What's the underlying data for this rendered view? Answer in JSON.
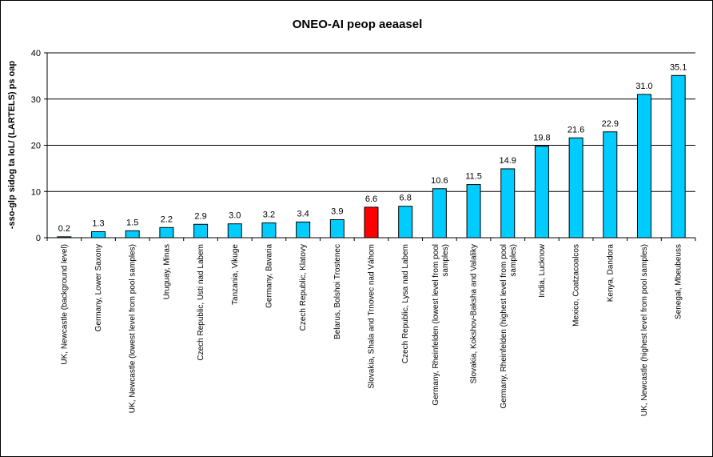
{
  "chart_data": {
    "type": "bar",
    "title": "ONEO-AI peop aeaasel",
    "ylabel": "-sso-glp sidog ta loL/ (LARTELS) ps oap",
    "xlabel": "",
    "ylim": [
      0,
      40
    ],
    "yticks": [
      0,
      10,
      20,
      30,
      40
    ],
    "grid": true,
    "legend": "none",
    "categories": [
      [
        "UK, Newcastle (background level)"
      ],
      [
        "Germany, Lower Saxony"
      ],
      [
        "UK, Newcastle (lowest level from pool samples)"
      ],
      [
        "Uruguay, Minas"
      ],
      [
        "Czech Republic, Usti nad Labem"
      ],
      [
        "Tanzania, Vikuge"
      ],
      [
        "Germany, Bavaria"
      ],
      [
        "Czech Republic, Klatovy"
      ],
      [
        "Belarus, Bolshoi Trostenec"
      ],
      [
        "Slovakia, Shala and Trnovec nad Váhom"
      ],
      [
        "Czech Republic, Lysa nad Labem"
      ],
      [
        "Germany, Rheinfelden (lowest level from pool",
        "samples)"
      ],
      [
        "Slovakia, Kokshov-Baksha and Valaliky"
      ],
      [
        "Germany, Rheinfelden (highest level from pool",
        "samples)"
      ],
      [
        "India, Lucknow"
      ],
      [
        "Mexico, Coatzacoalcos"
      ],
      [
        "Kenya, Dandora"
      ],
      [
        "UK, Newcastle (highest level from pool samples)"
      ],
      [
        "Senegal, Mbeubeuss"
      ]
    ],
    "values": [
      0.2,
      1.3,
      1.5,
      2.2,
      2.9,
      3.0,
      3.2,
      3.4,
      3.9,
      6.6,
      6.8,
      10.6,
      11.5,
      14.9,
      19.8,
      21.6,
      22.9,
      31.0,
      35.1
    ],
    "data_labels": [
      "0.2",
      "1.3",
      "1.5",
      "2.2",
      "2.9",
      "3.0",
      "3.2",
      "3.4",
      "3.9",
      "6.6",
      "6.8",
      "10.6",
      "11.5",
      "14.9",
      "19.8",
      "21.6",
      "22.9",
      "31.0",
      "35.1"
    ],
    "colors": {
      "bar": "#00ccff",
      "highlight": "#ff0000",
      "highlight_index": 9,
      "outline": "#000000",
      "grid": "#000000"
    }
  }
}
